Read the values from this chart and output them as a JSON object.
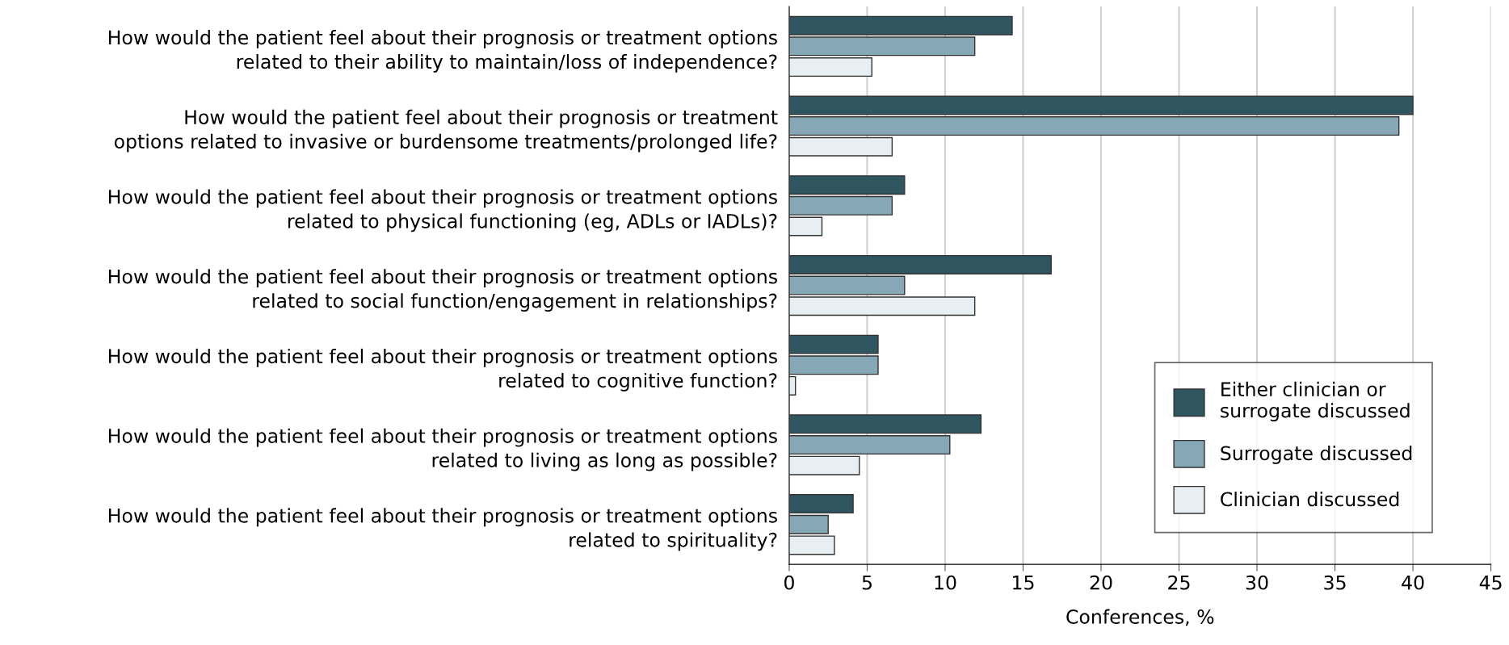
{
  "chart_data": {
    "type": "bar",
    "orientation": "horizontal",
    "xlabel": "Conferences, %",
    "categories": [
      "How would the patient feel about their prognosis or treatment options\nrelated to their ability to maintain/loss of independence?",
      "How would the patient feel about their prognosis or treatment\noptions related to invasive or burdensome treatments/prolonged life?",
      "How would the patient feel about their prognosis or treatment options\nrelated to physical functioning (eg, ADLs or IADLs)?",
      "How would the patient feel about their prognosis or treatment options\nrelated to social function/engagement in relationships?",
      "How would the patient feel about their prognosis or treatment options\nrelated to cognitive function?",
      "How would the patient feel about their prognosis or treatment options\nrelated to living as long as possible?",
      "How would the patient feel about their prognosis or treatment options\nrelated to spirituality?"
    ],
    "series": [
      {
        "name": "Either clinician or\nsurrogate discussed",
        "color": "#2f5561",
        "values": [
          14.3,
          40.0,
          7.4,
          16.8,
          5.7,
          12.3,
          4.1
        ]
      },
      {
        "name": "Surrogate discussed",
        "color": "#86a8b6",
        "values": [
          11.9,
          39.1,
          6.6,
          7.4,
          5.7,
          10.3,
          2.5
        ]
      },
      {
        "name": "Clinician discussed",
        "color": "#e8eff2",
        "values": [
          5.3,
          6.6,
          2.1,
          11.9,
          0.4,
          4.5,
          2.9
        ]
      }
    ],
    "xlim": [
      0,
      45
    ],
    "xticks": [
      0,
      5,
      10,
      15,
      20,
      25,
      30,
      35,
      40,
      45
    ],
    "grid": "x",
    "legend": "bottom right"
  }
}
